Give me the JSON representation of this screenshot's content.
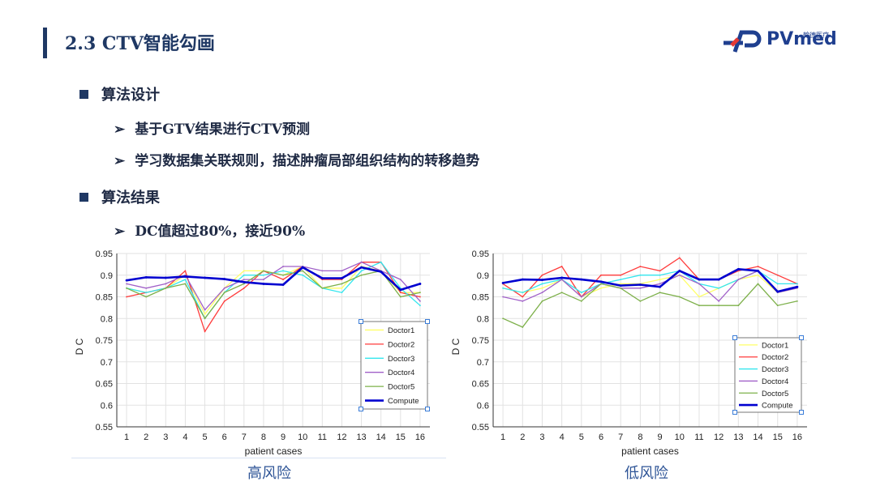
{
  "slide": {
    "title": "2.3 CTV智能勾画",
    "logo": {
      "text": "PVmed",
      "sub": "翰德医疗"
    }
  },
  "bullets": [
    {
      "label": "算法设计",
      "subs": [
        "基于GTV结果进行CTV预测",
        "学习数据集关联规则，描述肿瘤局部组织结构的转移趋势"
      ]
    },
    {
      "label": "算法结果",
      "subs": [
        "DC值超过80%，接近90%"
      ]
    }
  ],
  "colors": {
    "Doctor1": "#ffff66",
    "Doctor2": "#ff3b3b",
    "Doctor3": "#33e6ee",
    "Doctor4": "#a060c8",
    "Doctor5": "#7db04a",
    "Compute": "#0000d0"
  },
  "chart_data": [
    {
      "type": "line",
      "caption": "高风险",
      "xlabel": "patient cases",
      "ylabel": "D C",
      "ylim": [
        0.55,
        0.95
      ],
      "yticks": [
        "0.55",
        "0.6",
        "0.65",
        "0.7",
        "0.75",
        "0.8",
        "0.85",
        "0.9",
        "0.95"
      ],
      "x": [
        1,
        2,
        3,
        4,
        5,
        6,
        7,
        8,
        9,
        10,
        11,
        12,
        13,
        14,
        15,
        16
      ],
      "grid": true,
      "legend_position": "bottom-right",
      "series": [
        {
          "name": "Doctor1",
          "values": [
            0.87,
            0.86,
            0.87,
            0.9,
            0.81,
            0.87,
            0.91,
            0.91,
            0.9,
            0.92,
            0.87,
            0.87,
            0.92,
            0.91,
            0.86,
            0.86
          ]
        },
        {
          "name": "Doctor2",
          "values": [
            0.85,
            0.86,
            0.87,
            0.91,
            0.77,
            0.84,
            0.87,
            0.91,
            0.89,
            0.92,
            0.89,
            0.89,
            0.93,
            0.93,
            0.86,
            0.85
          ]
        },
        {
          "name": "Doctor3",
          "values": [
            0.87,
            0.86,
            0.87,
            0.89,
            0.8,
            0.86,
            0.9,
            0.9,
            0.91,
            0.9,
            0.87,
            0.86,
            0.91,
            0.93,
            0.87,
            0.83
          ]
        },
        {
          "name": "Doctor4",
          "values": [
            0.88,
            0.87,
            0.88,
            0.9,
            0.82,
            0.87,
            0.89,
            0.89,
            0.92,
            0.92,
            0.91,
            0.91,
            0.93,
            0.91,
            0.89,
            0.84
          ]
        },
        {
          "name": "Doctor5",
          "values": [
            0.87,
            0.85,
            0.87,
            0.88,
            0.8,
            0.86,
            0.88,
            0.91,
            0.9,
            0.91,
            0.87,
            0.88,
            0.9,
            0.91,
            0.85,
            0.86
          ]
        },
        {
          "name": "Compute",
          "values": [
            0.888,
            0.895,
            0.894,
            0.897,
            0.894,
            0.891,
            0.884,
            0.88,
            0.878,
            0.918,
            0.893,
            0.893,
            0.918,
            0.908,
            0.866,
            0.88
          ]
        }
      ]
    },
    {
      "type": "line",
      "caption": "低风险",
      "xlabel": "patient cases",
      "ylabel": "D C",
      "ylim": [
        0.55,
        0.95
      ],
      "yticks": [
        "0.55",
        "0.6",
        "0.65",
        "0.7",
        "0.75",
        "0.8",
        "0.85",
        "0.9",
        "0.95"
      ],
      "x": [
        1,
        2,
        3,
        4,
        5,
        6,
        7,
        8,
        9,
        10,
        11,
        12,
        13,
        14,
        15,
        16
      ],
      "grid": true,
      "legend_position": "bottom-right",
      "series": [
        {
          "name": "Doctor1",
          "values": [
            0.87,
            0.86,
            0.87,
            0.89,
            0.85,
            0.87,
            0.88,
            0.88,
            0.89,
            0.9,
            0.85,
            0.87,
            0.89,
            0.9,
            0.86,
            0.87
          ]
        },
        {
          "name": "Doctor2",
          "values": [
            0.88,
            0.85,
            0.9,
            0.92,
            0.85,
            0.9,
            0.9,
            0.92,
            0.91,
            0.94,
            0.89,
            0.89,
            0.91,
            0.92,
            0.9,
            0.88
          ]
        },
        {
          "name": "Doctor3",
          "values": [
            0.87,
            0.86,
            0.88,
            0.89,
            0.86,
            0.88,
            0.89,
            0.9,
            0.9,
            0.91,
            0.88,
            0.87,
            0.89,
            0.91,
            0.88,
            0.88
          ]
        },
        {
          "name": "Doctor4",
          "values": [
            0.85,
            0.84,
            0.86,
            0.89,
            0.85,
            0.88,
            0.87,
            0.87,
            0.88,
            0.9,
            0.88,
            0.84,
            0.89,
            0.91,
            0.86,
            0.87
          ]
        },
        {
          "name": "Doctor5",
          "values": [
            0.8,
            0.78,
            0.84,
            0.86,
            0.84,
            0.88,
            0.87,
            0.84,
            0.86,
            0.85,
            0.83,
            0.83,
            0.83,
            0.88,
            0.83,
            0.84
          ]
        },
        {
          "name": "Compute",
          "values": [
            0.882,
            0.89,
            0.889,
            0.894,
            0.89,
            0.885,
            0.876,
            0.878,
            0.873,
            0.91,
            0.89,
            0.89,
            0.914,
            0.91,
            0.862,
            0.873
          ]
        }
      ]
    }
  ]
}
